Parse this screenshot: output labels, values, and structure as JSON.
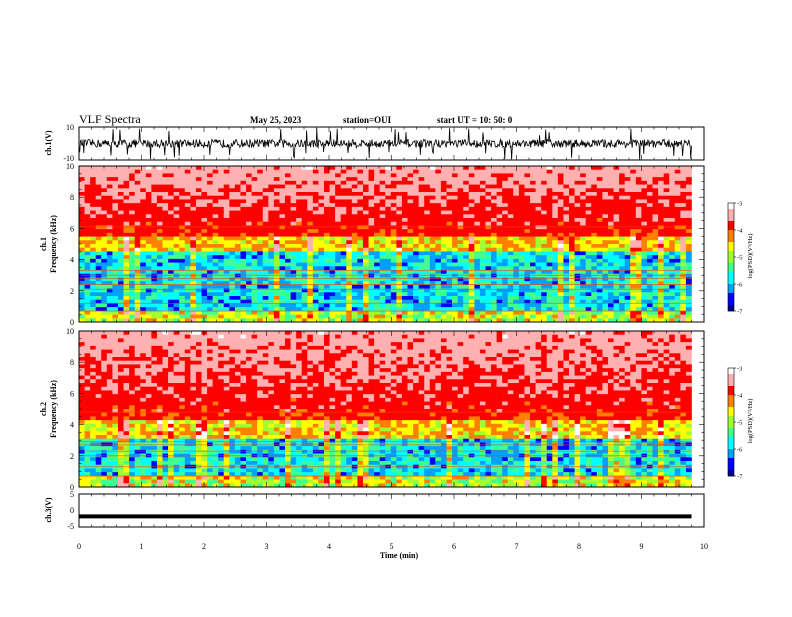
{
  "header": {
    "title": "VLF Spectra",
    "date": "May 25, 2023",
    "station": "station=OUI",
    "start": "start  UT  =   10: 50: 0"
  },
  "chart_data": [
    {
      "type": "line",
      "id": "ch1-waveform",
      "ylabel": "ch.1(V)",
      "ylim": [
        -10,
        10
      ],
      "yticks": [
        "10",
        "-10"
      ],
      "xlim": [
        0,
        9.8
      ],
      "description_level": "dense noise waveform, amplitude mostly within about ±3 V with frequent spikes to ±10 V"
    },
    {
      "type": "heatmap",
      "id": "ch1-spectrogram",
      "ylabel": "ch.1",
      "ylabel2": "Frequency  (kHz)",
      "ylim": [
        0,
        10
      ],
      "yticks": [
        "0",
        "2",
        "4",
        "6",
        "8",
        "10"
      ],
      "xlim": [
        0,
        9.8
      ],
      "noise_floor_khz": 5.5,
      "lines_khz": [
        0.7,
        1.2,
        2.1,
        2.4,
        2.8,
        3.0,
        3.3,
        6.1
      ],
      "colorbar": {
        "label": "log(PSD)(V²/Hz)",
        "ticks": [
          "-3",
          "-4",
          "-5",
          "-6",
          "-7"
        ],
        "range": [
          -7,
          -3
        ]
      }
    },
    {
      "type": "heatmap",
      "id": "ch2-spectrogram",
      "ylabel": "ch.2",
      "ylabel2": "Frequency  (kHz)",
      "ylim": [
        0,
        10
      ],
      "yticks": [
        "0",
        "2",
        "4",
        "6",
        "8",
        "10"
      ],
      "xlim": [
        0,
        9.8
      ],
      "noise_floor_khz": 4.2,
      "lines_khz": [
        0.7,
        1.3,
        2.0,
        2.3,
        2.7,
        2.9,
        4.8
      ],
      "colorbar": {
        "label": "log(PSD)(V²/Hz)",
        "ticks": [
          "-3",
          "-4",
          "-5",
          "-6",
          "-7"
        ],
        "range": [
          -7,
          -3
        ]
      }
    },
    {
      "type": "line",
      "id": "ch3-waveform",
      "ylabel": "ch.3(V)",
      "ylim": [
        -5,
        5
      ],
      "yticks": [
        "5",
        "0",
        "-5"
      ],
      "xlim": [
        0,
        9.8
      ],
      "constant_value": -1.8
    }
  ],
  "xaxis": {
    "label": "Time  (min)",
    "range": [
      0,
      10
    ],
    "ticks": [
      "0",
      "1",
      "2",
      "3",
      "4",
      "5",
      "6",
      "7",
      "8",
      "9",
      "10"
    ]
  },
  "colors": {
    "colormap": [
      "#00008f",
      "#0000ff",
      "#00a0ff",
      "#00ffff",
      "#40ff90",
      "#a0ff30",
      "#ffff00",
      "#ff8000",
      "#ff0000",
      "#ffb0b0",
      "#ffffff"
    ]
  }
}
